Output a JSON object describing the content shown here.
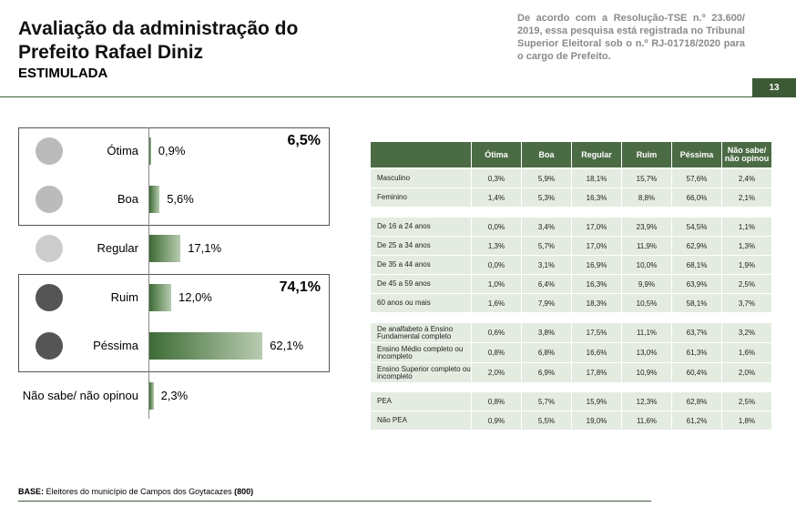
{
  "header": {
    "title_line1": "Avaliação da administração do",
    "title_line2": "Prefeito Rafael Diniz",
    "subtitle": "ESTIMULADA"
  },
  "note": "De acordo com a Resolução-TSE n.º 23.600/ 2019, essa pesquisa está registrada no Tribunal Superior Eleitoral sob o n.º RJ-01718/2020 para o cargo de Prefeito.",
  "page_number": "13",
  "chart_data": {
    "type": "bar",
    "orientation": "horizontal",
    "categories": [
      "Ótima",
      "Boa",
      "Regular",
      "Ruim",
      "Péssima",
      "Não sabe/ não opinou"
    ],
    "values": [
      0.9,
      5.6,
      17.1,
      12.0,
      62.1,
      2.3
    ],
    "value_labels": [
      "0,9%",
      "5,6%",
      "17,1%",
      "12,0%",
      "62,1%",
      "2,3%"
    ],
    "color": "#3d6b35",
    "group_totals": [
      {
        "value": 6.5,
        "label": "6,5%"
      },
      {
        "value": 74.1,
        "label": "74,1%"
      }
    ]
  },
  "table": {
    "columns": [
      "Ótima",
      "Boa",
      "Regular",
      "Ruim",
      "Péssima",
      "Não sabe/ não opinou"
    ],
    "groups": [
      [
        {
          "label": "Masculino",
          "cells": [
            "0,3%",
            "5,9%",
            "18,1%",
            "15,7%",
            "57,6%",
            "2,4%"
          ]
        },
        {
          "label": "Feminino",
          "cells": [
            "1,4%",
            "5,3%",
            "16,3%",
            "8,8%",
            "66,0%",
            "2,1%"
          ]
        }
      ],
      [
        {
          "label": "De 16 a 24 anos",
          "cells": [
            "0,0%",
            "3,4%",
            "17,0%",
            "23,9%",
            "54,5%",
            "1,1%"
          ]
        },
        {
          "label": "De 25 a 34 anos",
          "cells": [
            "1,3%",
            "5,7%",
            "17,0%",
            "11,9%",
            "62,9%",
            "1,3%"
          ]
        },
        {
          "label": "De 35 a 44 anos",
          "cells": [
            "0,0%",
            "3,1%",
            "16,9%",
            "10,0%",
            "68,1%",
            "1,9%"
          ]
        },
        {
          "label": "De 45 a 59 anos",
          "cells": [
            "1,0%",
            "6,4%",
            "16,3%",
            "9,9%",
            "63,9%",
            "2,5%"
          ]
        },
        {
          "label": "60 anos ou mais",
          "cells": [
            "1,6%",
            "7,9%",
            "18,3%",
            "10,5%",
            "58,1%",
            "3,7%"
          ]
        }
      ],
      [
        {
          "label": "De analfabeto à Ensino Fundamental completo",
          "cells": [
            "0,6%",
            "3,8%",
            "17,5%",
            "11,1%",
            "63,7%",
            "3,2%"
          ]
        },
        {
          "label": "Ensino Médio completo ou incompleto",
          "cells": [
            "0,8%",
            "6,8%",
            "16,6%",
            "13,0%",
            "61,3%",
            "1,6%"
          ]
        },
        {
          "label": "Ensino Superior completo ou incompleto",
          "cells": [
            "2,0%",
            "6,9%",
            "17,8%",
            "10,9%",
            "60,4%",
            "2,0%"
          ]
        }
      ],
      [
        {
          "label": "PEA",
          "cells": [
            "0,8%",
            "5,7%",
            "15,9%",
            "12,3%",
            "62,8%",
            "2,5%"
          ]
        },
        {
          "label": "Não PEA",
          "cells": [
            "0,9%",
            "5,5%",
            "19,0%",
            "11,6%",
            "61,2%",
            "1,8%"
          ]
        }
      ]
    ]
  },
  "base": {
    "label": "BASE:",
    "text": "Eleitores do município de Campos dos Goytacazes",
    "count": "(800)"
  }
}
